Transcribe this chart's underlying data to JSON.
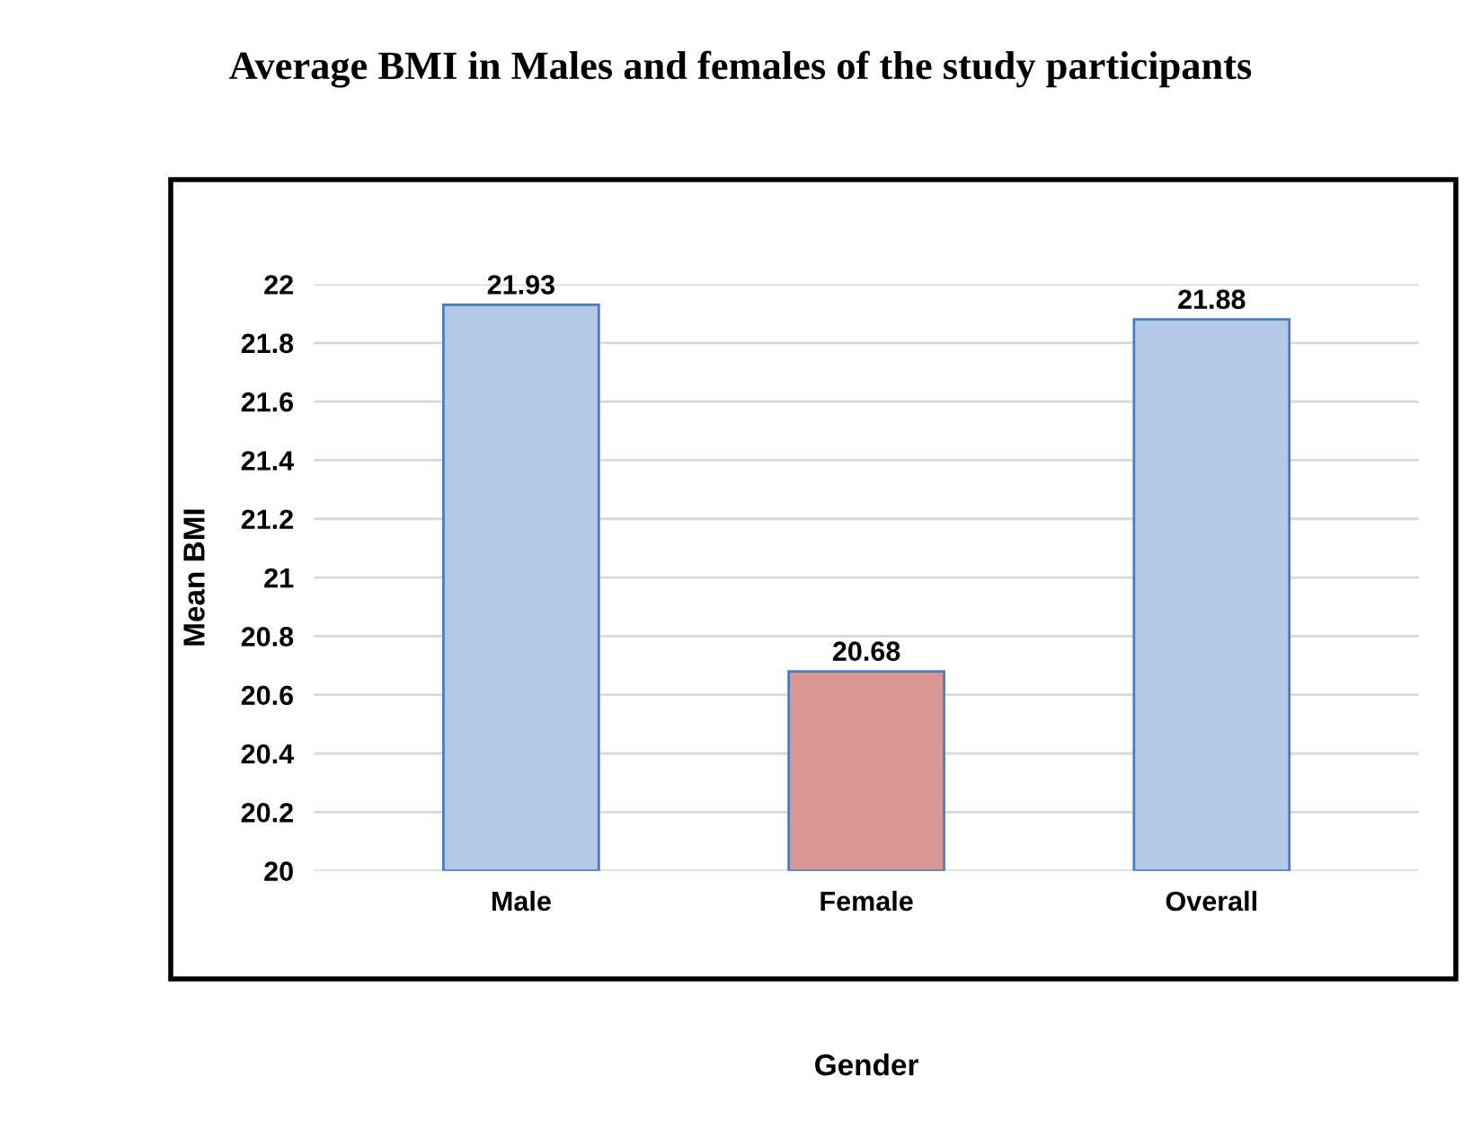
{
  "chart_data": {
    "type": "bar",
    "title": "Average BMI in Males and females of the study participants",
    "xlabel": "Gender",
    "ylabel": "Mean BMI",
    "categories": [
      "Male",
      "Female",
      "Overall"
    ],
    "values": [
      21.93,
      20.68,
      21.88
    ],
    "colors": [
      "#b4c7e7",
      "#d99694",
      "#b4c7e7"
    ],
    "ylim": [
      20,
      22
    ],
    "yticks": [
      20,
      20.2,
      20.4,
      20.6,
      20.8,
      21,
      21.2,
      21.4,
      21.6,
      21.8,
      22
    ],
    "grid": "y",
    "data_labels": true
  }
}
